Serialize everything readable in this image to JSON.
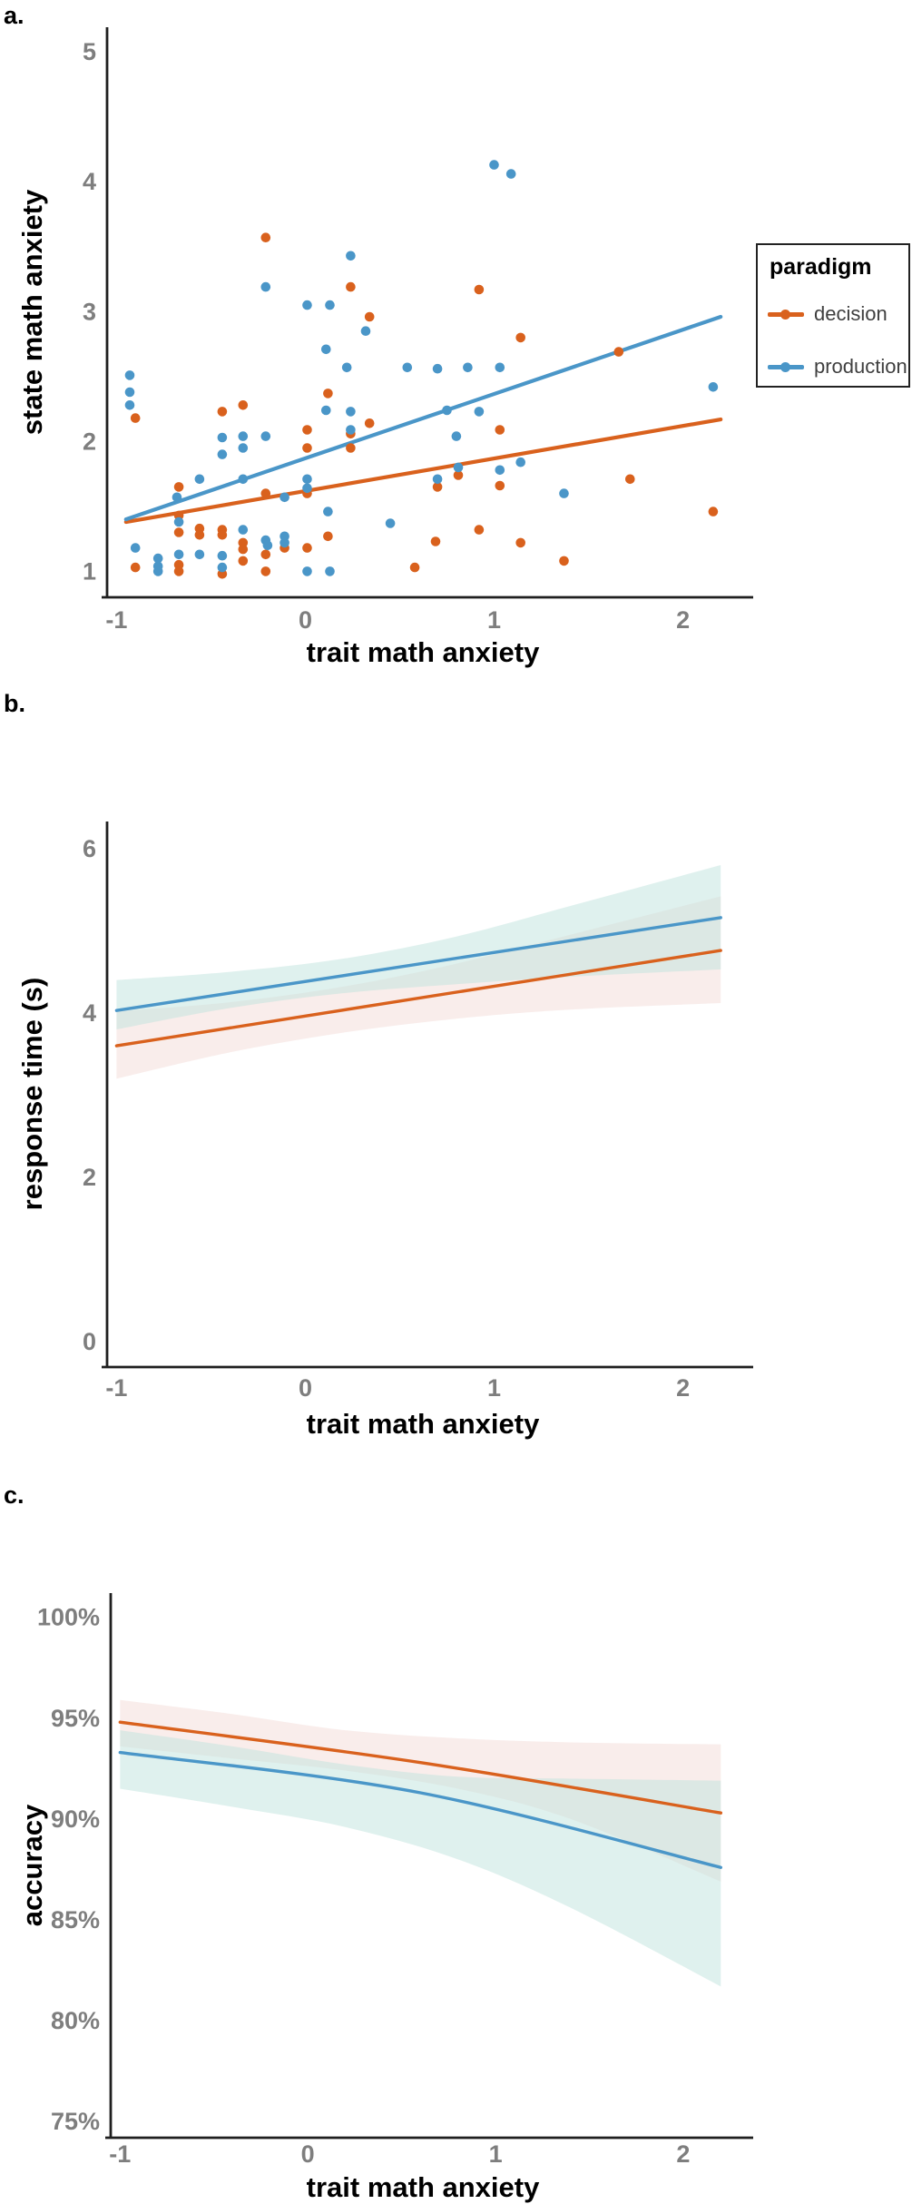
{
  "figure": {
    "panel_letters": {
      "a": "a.",
      "b": "b.",
      "c": "c."
    },
    "colors": {
      "decision": "#D9611D",
      "production": "#4A96C8",
      "decision_band": "#F3DCD8",
      "production_band": "#BFE3DD",
      "tick_label": "#7E7E7E",
      "axis_line": "#1F1F1F"
    }
  },
  "chart_data": [
    {
      "id": "a",
      "type": "scatter",
      "xlabel": "trait math anxiety",
      "ylabel": "state math anxiety",
      "xlim": [
        -1.05,
        2.3
      ],
      "ylim": [
        0.8,
        5.19
      ],
      "xticks": {
        "values": [
          -1,
          0,
          1,
          2
        ],
        "labels": [
          "-1",
          "0",
          "1",
          "2"
        ]
      },
      "yticks": {
        "values": [
          1,
          2,
          3,
          4,
          5
        ],
        "labels": [
          "1",
          "2",
          "3",
          "4",
          "5"
        ]
      },
      "legend": {
        "title": "paradigm",
        "position": "right",
        "entries": [
          {
            "label": "decision"
          },
          {
            "label": "production"
          }
        ]
      },
      "series": [
        {
          "name": "decision",
          "color": "#D9611D",
          "trend": [
            [
              -0.95,
              1.38
            ],
            [
              2.2,
              2.17
            ]
          ],
          "points": [
            [
              -0.9,
              2.18
            ],
            [
              -0.9,
              1.03
            ],
            [
              -0.67,
              1.65
            ],
            [
              -0.67,
              1.43
            ],
            [
              -0.67,
              1.3
            ],
            [
              -0.67,
              1.05
            ],
            [
              -0.67,
              1.0
            ],
            [
              -0.56,
              1.33
            ],
            [
              -0.56,
              1.28
            ],
            [
              -0.44,
              2.23
            ],
            [
              -0.44,
              1.32
            ],
            [
              -0.44,
              1.28
            ],
            [
              -0.44,
              0.98
            ],
            [
              -0.33,
              2.28
            ],
            [
              -0.33,
              1.22
            ],
            [
              -0.33,
              1.17
            ],
            [
              -0.33,
              1.08
            ],
            [
              -0.21,
              3.57
            ],
            [
              -0.21,
              1.6
            ],
            [
              -0.21,
              1.13
            ],
            [
              -0.21,
              1.0
            ],
            [
              -0.11,
              1.18
            ],
            [
              0.01,
              2.09
            ],
            [
              0.01,
              1.95
            ],
            [
              0.01,
              1.6
            ],
            [
              0.01,
              1.18
            ],
            [
              0.12,
              2.37
            ],
            [
              0.12,
              1.27
            ],
            [
              0.24,
              3.19
            ],
            [
              0.24,
              2.06
            ],
            [
              0.24,
              1.95
            ],
            [
              0.34,
              2.96
            ],
            [
              0.34,
              2.14
            ],
            [
              0.58,
              1.03
            ],
            [
              0.7,
              1.65
            ],
            [
              0.69,
              1.23
            ],
            [
              0.81,
              1.74
            ],
            [
              0.92,
              3.17
            ],
            [
              0.92,
              1.32
            ],
            [
              1.03,
              2.09
            ],
            [
              1.03,
              1.66
            ],
            [
              1.14,
              2.8
            ],
            [
              1.14,
              1.22
            ],
            [
              1.37,
              1.08
            ],
            [
              1.66,
              2.69
            ],
            [
              1.72,
              1.71
            ],
            [
              2.16,
              1.46
            ]
          ]
        },
        {
          "name": "production",
          "color": "#4A96C8",
          "trend": [
            [
              -0.95,
              1.4
            ],
            [
              2.2,
              2.96
            ]
          ],
          "points": [
            [
              -0.93,
              2.51
            ],
            [
              -0.93,
              2.38
            ],
            [
              -0.93,
              2.28
            ],
            [
              -0.9,
              1.18
            ],
            [
              -0.78,
              1.1
            ],
            [
              -0.78,
              1.04
            ],
            [
              -0.78,
              1.0
            ],
            [
              -0.68,
              1.57
            ],
            [
              -0.67,
              1.38
            ],
            [
              -0.67,
              1.13
            ],
            [
              -0.56,
              1.71
            ],
            [
              -0.56,
              1.13
            ],
            [
              -0.44,
              2.03
            ],
            [
              -0.44,
              1.9
            ],
            [
              -0.44,
              1.12
            ],
            [
              -0.44,
              1.03
            ],
            [
              -0.33,
              2.04
            ],
            [
              -0.33,
              1.95
            ],
            [
              -0.33,
              1.71
            ],
            [
              -0.33,
              1.32
            ],
            [
              -0.21,
              3.19
            ],
            [
              -0.21,
              2.04
            ],
            [
              -0.21,
              1.24
            ],
            [
              -0.2,
              1.2
            ],
            [
              -0.11,
              1.57
            ],
            [
              -0.11,
              1.27
            ],
            [
              -0.11,
              1.22
            ],
            [
              0.01,
              3.05
            ],
            [
              0.01,
              1.71
            ],
            [
              0.01,
              1.64
            ],
            [
              0.01,
              1.0
            ],
            [
              0.13,
              3.05
            ],
            [
              0.12,
              1.46
            ],
            [
              0.13,
              1.0
            ],
            [
              0.24,
              3.43
            ],
            [
              0.24,
              2.23
            ],
            [
              0.24,
              2.09
            ],
            [
              0.22,
              2.57
            ],
            [
              0.32,
              2.85
            ],
            [
              0.11,
              2.71
            ],
            [
              0.11,
              2.24
            ],
            [
              0.45,
              1.37
            ],
            [
              0.54,
              2.57
            ],
            [
              0.7,
              2.56
            ],
            [
              0.7,
              1.71
            ],
            [
              0.75,
              2.24
            ],
            [
              0.8,
              2.04
            ],
            [
              0.81,
              1.8
            ],
            [
              0.86,
              2.57
            ],
            [
              0.92,
              2.23
            ],
            [
              1.0,
              4.13
            ],
            [
              1.09,
              4.06
            ],
            [
              1.03,
              2.57
            ],
            [
              1.03,
              1.78
            ],
            [
              1.14,
              1.84
            ],
            [
              1.37,
              1.6
            ],
            [
              2.16,
              2.42
            ]
          ]
        }
      ]
    },
    {
      "id": "b",
      "type": "line",
      "xlabel": "trait math anxiety",
      "ylabel": "response time (s)",
      "xlim": [
        -1.05,
        2.3
      ],
      "ylim": [
        -0.31,
        6.33
      ],
      "xticks": {
        "values": [
          -1,
          0,
          1,
          2
        ],
        "labels": [
          "-1",
          "0",
          "1",
          "2"
        ]
      },
      "yticks": {
        "values": [
          0,
          2,
          4,
          6
        ],
        "labels": [
          "0",
          "2",
          "4",
          "6"
        ]
      },
      "series": [
        {
          "name": "decision",
          "color": "#D9611D",
          "band_color": "#F3DCD8",
          "line": [
            [
              -1.0,
              3.6
            ],
            [
              2.2,
              4.76
            ]
          ],
          "ci": {
            "x": [
              -1.0,
              -0.4,
              0.2,
              0.8,
              1.4,
              2.2
            ],
            "upper": [
              4.02,
              4.13,
              4.32,
              4.6,
              4.95,
              5.42
            ],
            "lower": [
              3.2,
              3.52,
              3.76,
              3.93,
              4.04,
              4.12
            ]
          }
        },
        {
          "name": "production",
          "color": "#4A96C8",
          "band_color": "#BFE3DD",
          "line": [
            [
              -1.0,
              4.03
            ],
            [
              2.2,
              5.16
            ]
          ],
          "ci": {
            "x": [
              -1.0,
              -0.4,
              0.2,
              0.8,
              1.4,
              2.2
            ],
            "upper": [
              4.4,
              4.5,
              4.66,
              4.93,
              5.3,
              5.8
            ],
            "lower": [
              3.8,
              4.06,
              4.24,
              4.35,
              4.44,
              4.53
            ]
          }
        }
      ]
    },
    {
      "id": "c",
      "type": "line",
      "xlabel": "trait math anxiety",
      "ylabel": "accuracy",
      "xlim": [
        -1.05,
        2.3
      ],
      "ylim": [
        74.2,
        101.2
      ],
      "xticks": {
        "values": [
          -1,
          0,
          1,
          2
        ],
        "labels": [
          "-1",
          "0",
          "1",
          "2"
        ]
      },
      "yticks": {
        "values": [
          75,
          80,
          85,
          90,
          95,
          100
        ],
        "labels": [
          "75%",
          "80%",
          "85%",
          "90%",
          "95%",
          "100%"
        ]
      },
      "series": [
        {
          "name": "decision",
          "color": "#D9611D",
          "band_color": "#F3DCD8",
          "line": [
            [
              -1.0,
              94.8
            ],
            [
              0.6,
              92.8
            ],
            [
              2.2,
              90.3
            ]
          ],
          "ci": {
            "x": [
              -1.0,
              -0.4,
              0.2,
              0.8,
              1.4,
              2.2
            ],
            "upper": [
              95.9,
              95.2,
              94.4,
              94.0,
              93.8,
              93.7
            ],
            "lower": [
              93.6,
              93.0,
              92.4,
              91.5,
              90.0,
              86.9
            ]
          }
        },
        {
          "name": "production",
          "color": "#4A96C8",
          "band_color": "#BFE3DD",
          "line": [
            [
              -1.0,
              93.3
            ],
            [
              0.6,
              91.3
            ],
            [
              2.2,
              87.6
            ]
          ],
          "ci": {
            "x": [
              -1.0,
              -0.4,
              0.2,
              0.8,
              1.4,
              2.2
            ],
            "upper": [
              94.4,
              93.6,
              92.7,
              92.1,
              92.0,
              91.9
            ],
            "lower": [
              91.5,
              90.6,
              89.6,
              88.0,
              85.6,
              81.7
            ]
          }
        }
      ]
    }
  ]
}
